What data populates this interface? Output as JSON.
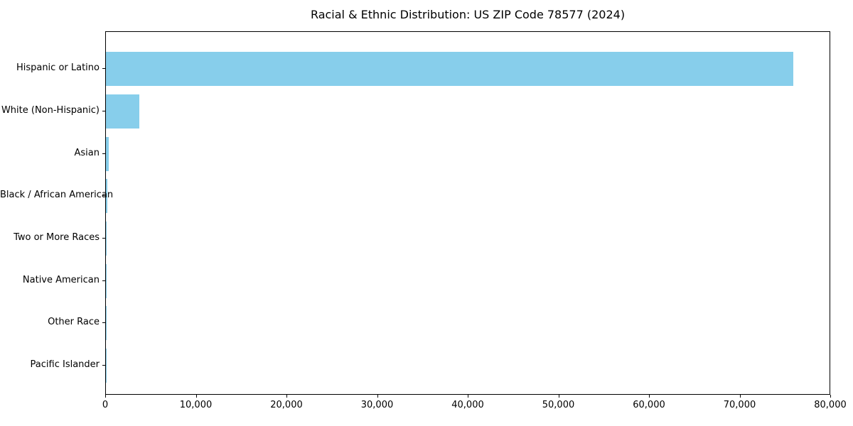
{
  "chart_data": {
    "type": "bar",
    "orientation": "horizontal",
    "title": "Racial & Ethnic Distribution: US ZIP Code 78577 (2024)",
    "categories": [
      "Hispanic or Latino",
      "White (Non-Hispanic)",
      "Asian",
      "Black / African American",
      "Two or More Races",
      "Native American",
      "Other Race",
      "Pacific Islander"
    ],
    "values": [
      76000,
      3700,
      350,
      150,
      100,
      60,
      40,
      15
    ],
    "xlabel": "",
    "ylabel": "",
    "xlim": [
      0,
      80000
    ],
    "x_ticks": [
      0,
      10000,
      20000,
      30000,
      40000,
      50000,
      60000,
      70000,
      80000
    ],
    "x_tick_labels": [
      "0",
      "10,000",
      "20,000",
      "30,000",
      "40,000",
      "50,000",
      "60,000",
      "70,000",
      "80,000"
    ],
    "bar_color": "#87CEEB",
    "grid": false,
    "legend": null
  }
}
